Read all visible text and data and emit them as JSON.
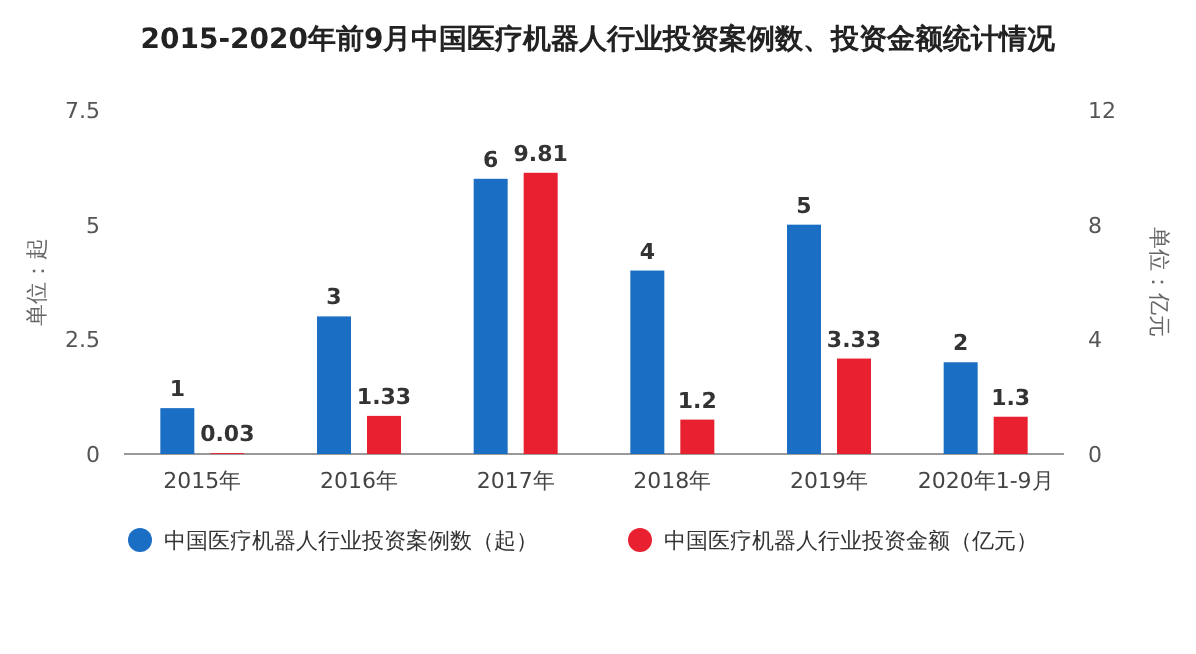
{
  "chart_data": {
    "type": "bar",
    "title": "2015-2020年前9月中国医疗机器人行业投资案例数、投资金额统计情况",
    "ylabel": "单位：起",
    "y2label": "单位：亿元",
    "categories": [
      "2015年",
      "2016年",
      "2017年",
      "2018年",
      "2019年",
      "2020年1-9月"
    ],
    "series": [
      {
        "name": "中国医疗机器人行业投资案例数（起）",
        "color": "#1a6fc4",
        "values": [
          1,
          3,
          6,
          4,
          5,
          2
        ]
      },
      {
        "name": "中国医疗机器人行业投资金额（亿元）",
        "color": "#e8202f",
        "axis": "y2",
        "values": [
          0.03,
          1.33,
          9.81,
          1.2,
          3.33,
          1.3
        ]
      }
    ],
    "ylim": [
      0,
      7.5
    ],
    "yticks": [
      0,
      2.5,
      5,
      7.5
    ],
    "y2lim": [
      0,
      12
    ],
    "y2ticks": [
      0,
      4,
      8,
      12
    ],
    "data_labels": true,
    "legend": "bottom"
  }
}
